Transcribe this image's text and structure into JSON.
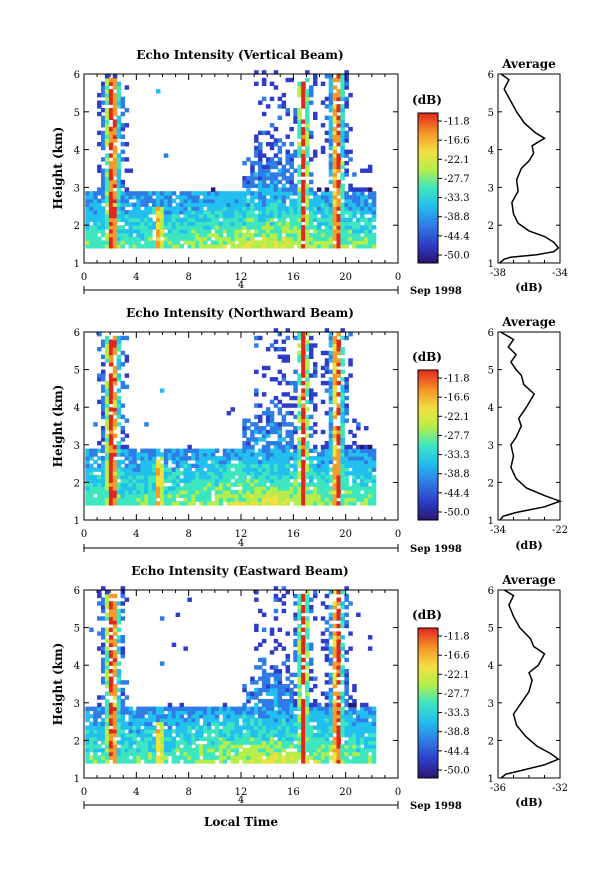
{
  "chart_data": [
    {
      "type": "heatmap",
      "title": "Echo Intensity (Vertical Beam)",
      "ylabel": "Height (km)",
      "xlim": [
        0,
        24
      ],
      "ylim": [
        1,
        6
      ],
      "x_ticks": [
        "0",
        "4",
        "8",
        "12",
        "16",
        "20",
        "0"
      ],
      "y_ticks": [
        "1",
        "2",
        "3",
        "4",
        "5",
        "6"
      ],
      "date_marker": "4",
      "date_label": "Sep 1998",
      "colorbar": {
        "unit": "(dB)",
        "ticks": [
          "-11.8",
          "-16.6",
          "-22.1",
          "-27.7",
          "-33.3",
          "-38.8",
          "-44.4",
          "-50.0"
        ],
        "range": [
          -50.0,
          -11.8
        ]
      },
      "profile": {
        "title": "Average",
        "xlabel": "(dB)",
        "xlim": [
          -38,
          -34
        ],
        "x_ticks": [
          "-38",
          "-34"
        ],
        "y_ticks": [
          "1",
          "2",
          "3",
          "4",
          "5",
          "6"
        ],
        "points": [
          [
            -37.9,
            1.0
          ],
          [
            -37.6,
            1.1
          ],
          [
            -37.2,
            1.15
          ],
          [
            -35.5,
            1.22
          ],
          [
            -34.4,
            1.3
          ],
          [
            -34.1,
            1.4
          ],
          [
            -34.4,
            1.55
          ],
          [
            -35.0,
            1.7
          ],
          [
            -36.0,
            1.85
          ],
          [
            -36.7,
            2.05
          ],
          [
            -37.0,
            2.3
          ],
          [
            -37.1,
            2.6
          ],
          [
            -36.7,
            2.9
          ],
          [
            -36.8,
            3.2
          ],
          [
            -36.5,
            3.5
          ],
          [
            -36.0,
            3.7
          ],
          [
            -35.7,
            3.9
          ],
          [
            -35.8,
            4.1
          ],
          [
            -35.0,
            4.3
          ],
          [
            -35.6,
            4.45
          ],
          [
            -36.3,
            4.7
          ],
          [
            -36.8,
            5.0
          ],
          [
            -37.2,
            5.3
          ],
          [
            -37.6,
            5.6
          ],
          [
            -37.3,
            5.85
          ],
          [
            -37.8,
            6.0
          ]
        ]
      }
    },
    {
      "type": "heatmap",
      "title": "Echo Intensity (Northward Beam)",
      "ylabel": "Height (km)",
      "xlim": [
        0,
        24
      ],
      "ylim": [
        1,
        6
      ],
      "x_ticks": [
        "0",
        "4",
        "8",
        "12",
        "16",
        "20",
        "0"
      ],
      "y_ticks": [
        "1",
        "2",
        "3",
        "4",
        "5",
        "6"
      ],
      "date_marker": "4",
      "date_label": "Sep 1998",
      "colorbar": {
        "unit": "(dB)",
        "ticks": [
          "-11.8",
          "-16.6",
          "-22.1",
          "-27.7",
          "-33.3",
          "-38.8",
          "-44.4",
          "-50.0"
        ],
        "range": [
          -50.0,
          -11.8
        ]
      },
      "profile": {
        "title": "Average",
        "xlabel": "(dB)",
        "xlim": [
          -34,
          -22
        ],
        "x_ticks": [
          "-34",
          "-22"
        ],
        "y_ticks": [
          "1",
          "2",
          "3",
          "4",
          "5",
          "6"
        ],
        "points": [
          [
            -33.6,
            1.0
          ],
          [
            -33.0,
            1.1
          ],
          [
            -30.5,
            1.2
          ],
          [
            -25.0,
            1.35
          ],
          [
            -22.0,
            1.5
          ],
          [
            -25.0,
            1.65
          ],
          [
            -28.5,
            1.85
          ],
          [
            -30.5,
            2.1
          ],
          [
            -31.5,
            2.4
          ],
          [
            -31.0,
            2.7
          ],
          [
            -31.5,
            3.0
          ],
          [
            -30.5,
            3.2
          ],
          [
            -29.5,
            3.5
          ],
          [
            -30.0,
            3.7
          ],
          [
            -28.5,
            4.0
          ],
          [
            -27.0,
            4.35
          ],
          [
            -29.0,
            4.6
          ],
          [
            -29.5,
            4.85
          ],
          [
            -30.5,
            5.0
          ],
          [
            -31.5,
            5.2
          ],
          [
            -30.5,
            5.4
          ],
          [
            -32.0,
            5.6
          ],
          [
            -31.0,
            5.8
          ],
          [
            -33.5,
            6.0
          ]
        ]
      }
    },
    {
      "type": "heatmap",
      "title": "Echo Intensity (Eastward Beam)",
      "xlabel": "Local Time",
      "ylabel": "Height (km)",
      "xlim": [
        0,
        24
      ],
      "ylim": [
        1,
        6
      ],
      "x_ticks": [
        "0",
        "4",
        "8",
        "12",
        "16",
        "20",
        "0"
      ],
      "y_ticks": [
        "1",
        "2",
        "3",
        "4",
        "5",
        "6"
      ],
      "date_marker": "4",
      "date_label": "Sep 1998",
      "colorbar": {
        "unit": "(dB)",
        "ticks": [
          "-11.8",
          "-16.6",
          "-22.1",
          "-27.7",
          "-33.3",
          "-38.8",
          "-44.4",
          "-50.0"
        ],
        "range": [
          -50.0,
          -11.8
        ]
      },
      "profile": {
        "title": "Average",
        "xlabel": "(dB)",
        "xlim": [
          -36,
          -32
        ],
        "x_ticks": [
          "-36",
          "-32"
        ],
        "y_ticks": [
          "1",
          "2",
          "3",
          "4",
          "5",
          "6"
        ],
        "points": [
          [
            -35.8,
            1.0
          ],
          [
            -35.5,
            1.1
          ],
          [
            -34.5,
            1.2
          ],
          [
            -33.0,
            1.35
          ],
          [
            -32.1,
            1.5
          ],
          [
            -32.6,
            1.65
          ],
          [
            -33.5,
            1.85
          ],
          [
            -34.2,
            2.1
          ],
          [
            -34.8,
            2.4
          ],
          [
            -35.0,
            2.7
          ],
          [
            -34.5,
            3.0
          ],
          [
            -34.0,
            3.3
          ],
          [
            -33.8,
            3.6
          ],
          [
            -34.0,
            3.8
          ],
          [
            -33.4,
            4.0
          ],
          [
            -33.0,
            4.3
          ],
          [
            -33.7,
            4.5
          ],
          [
            -33.9,
            4.7
          ],
          [
            -34.6,
            5.0
          ],
          [
            -35.0,
            5.3
          ],
          [
            -35.3,
            5.6
          ],
          [
            -35.0,
            5.85
          ],
          [
            -35.6,
            6.0
          ]
        ]
      }
    }
  ]
}
